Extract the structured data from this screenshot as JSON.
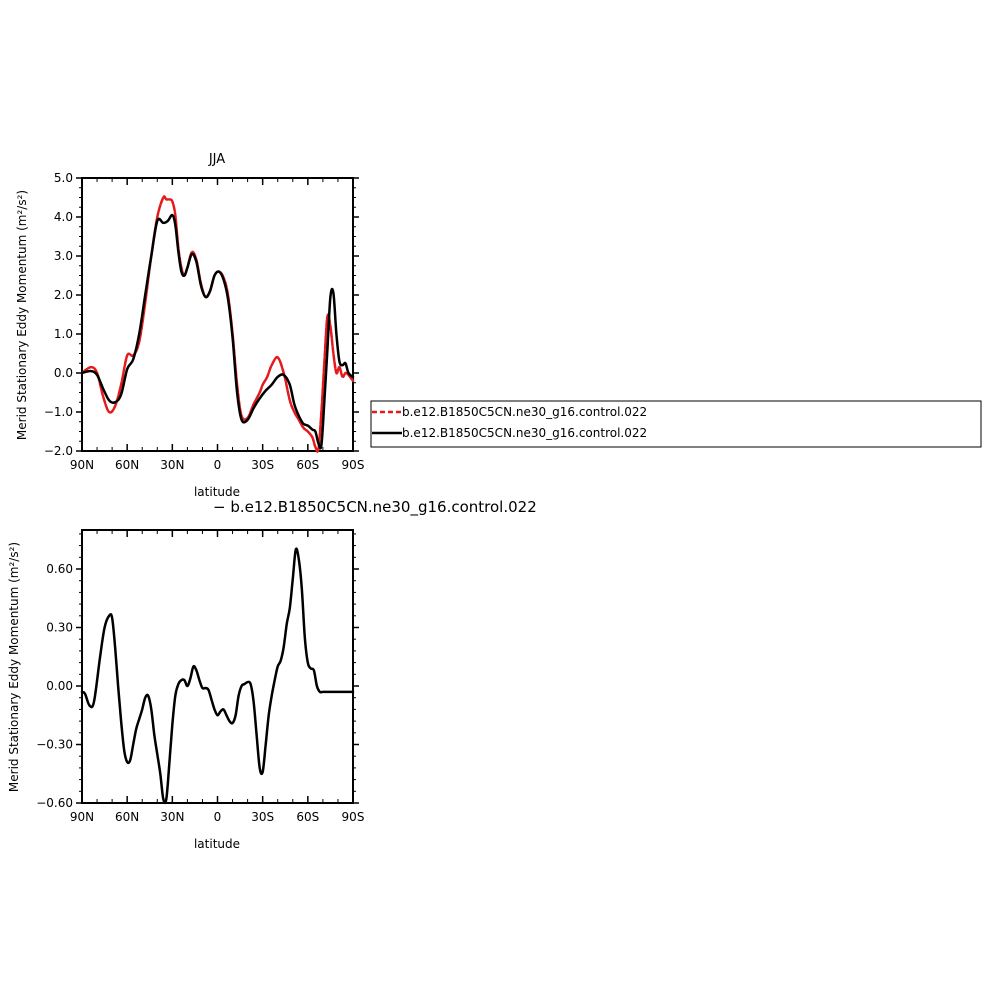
{
  "chart_data": [
    {
      "type": "line",
      "title": "JJA",
      "xlabel": "latitude",
      "ylabel": "Merid Stationary Eddy Momentum (m²/s²)",
      "xlim": [
        -90,
        90
      ],
      "ylim": [
        -2.0,
        5.0
      ],
      "xticks": [
        -90,
        -60,
        -30,
        0,
        30,
        60,
        90
      ],
      "xtick_labels": [
        "90N",
        "60N",
        "30N",
        "0",
        "30S",
        "60S",
        "90S"
      ],
      "yticks": [
        -2,
        -1,
        0,
        1,
        2,
        3,
        4,
        5
      ],
      "ytick_labels": [
        "−2.0",
        "−1.0",
        "0.0",
        "1.0",
        "2.0",
        "3.0",
        "4.0",
        "5.0"
      ],
      "grid": false,
      "legend": "right",
      "series": [
        {
          "name": "b.e12.B1850C5CN.ne30_g16.control.022",
          "color": "#e41a1c",
          "dash": "dashed",
          "x": [
            -90,
            -84,
            -80,
            -76,
            -72,
            -68,
            -64,
            -60,
            -56,
            -52,
            -48,
            -44,
            -40,
            -36,
            -34,
            -32,
            -30,
            -28,
            -26,
            -24,
            -22,
            -20,
            -17,
            -14,
            -11,
            -8,
            -5,
            -2,
            1,
            4,
            7,
            10,
            13,
            16,
            20,
            24,
            28,
            30,
            33,
            36,
            40,
            44,
            48,
            51,
            54,
            57,
            60,
            63,
            65,
            67,
            69,
            71,
            73,
            75,
            77,
            79,
            81,
            83,
            85,
            87,
            90
          ],
          "y": [
            0.0,
            0.15,
            0.0,
            -0.6,
            -1.0,
            -0.85,
            -0.3,
            0.45,
            0.45,
            0.8,
            1.8,
            3.0,
            4.0,
            4.5,
            4.45,
            4.45,
            4.4,
            4.05,
            3.2,
            2.7,
            2.5,
            2.7,
            3.1,
            2.9,
            2.3,
            1.95,
            2.1,
            2.5,
            2.6,
            2.45,
            2.0,
            1.0,
            -0.3,
            -1.1,
            -1.15,
            -0.8,
            -0.5,
            -0.3,
            -0.1,
            0.2,
            0.4,
            0.0,
            -0.7,
            -1.0,
            -1.2,
            -1.4,
            -1.5,
            -1.65,
            -1.9,
            -1.95,
            -1.0,
            0.3,
            1.45,
            1.2,
            0.5,
            0.0,
            0.15,
            -0.1,
            0.0,
            -0.05,
            -0.2
          ]
        },
        {
          "name": "b.e12.B1850C5CN.ne30_g16.control.022",
          "color": "#000000",
          "dash": "solid",
          "x": [
            -90,
            -84,
            -80,
            -76,
            -72,
            -68,
            -64,
            -60,
            -56,
            -52,
            -48,
            -44,
            -40,
            -36,
            -33,
            -30,
            -28,
            -26,
            -24,
            -22,
            -20,
            -17,
            -14,
            -11,
            -8,
            -5,
            -2,
            1,
            4,
            7,
            10,
            13,
            16,
            20,
            24,
            28,
            32,
            36,
            40,
            44,
            48,
            51,
            54,
            57,
            60,
            63,
            65,
            67,
            69,
            71,
            73,
            75,
            77,
            79,
            81,
            83,
            85,
            87,
            90
          ],
          "y": [
            0.0,
            0.05,
            -0.05,
            -0.4,
            -0.7,
            -0.75,
            -0.55,
            0.1,
            0.35,
            1.0,
            2.0,
            3.0,
            3.9,
            3.85,
            3.9,
            4.05,
            3.8,
            3.1,
            2.6,
            2.5,
            2.7,
            3.05,
            2.85,
            2.25,
            1.95,
            2.1,
            2.5,
            2.6,
            2.4,
            1.9,
            0.9,
            -0.5,
            -1.2,
            -1.2,
            -0.9,
            -0.65,
            -0.45,
            -0.3,
            -0.1,
            -0.05,
            -0.3,
            -0.8,
            -1.1,
            -1.3,
            -1.35,
            -1.45,
            -1.5,
            -1.8,
            -1.85,
            -0.7,
            0.6,
            1.95,
            2.05,
            1.0,
            0.3,
            0.2,
            0.25,
            0.0,
            -0.1
          ]
        }
      ]
    },
    {
      "type": "line",
      "title": "− b.e12.B1850C5CN.ne30_g16.control.022",
      "xlabel": "latitude",
      "ylabel": "Merid Stationary Eddy Momentum (m²/s²)",
      "xlim": [
        -90,
        90
      ],
      "ylim": [
        -0.6,
        0.8
      ],
      "xticks": [
        -90,
        -60,
        -30,
        0,
        30,
        60,
        90
      ],
      "xtick_labels": [
        "90N",
        "60N",
        "30N",
        "0",
        "30S",
        "60S",
        "90S"
      ],
      "yticks": [
        -0.6,
        -0.3,
        0.0,
        0.3,
        0.6
      ],
      "ytick_labels": [
        "−0.60",
        "−0.30",
        "0.00",
        "0.30",
        "0.60"
      ],
      "grid": false,
      "series": [
        {
          "color": "#000000",
          "dash": "solid",
          "x": [
            -90,
            -88,
            -85,
            -82,
            -78,
            -75,
            -72,
            -70,
            -68,
            -66,
            -64,
            -62,
            -60,
            -58,
            -56,
            -54,
            -52,
            -50,
            -48,
            -46,
            -44,
            -42,
            -40,
            -38,
            -36,
            -34,
            -32,
            -30,
            -28,
            -26,
            -24,
            -22,
            -20,
            -18,
            -16,
            -14,
            -12,
            -10,
            -8,
            -6,
            -4,
            -2,
            0,
            2,
            4,
            6,
            8,
            10,
            12,
            14,
            16,
            18,
            20,
            22,
            24,
            26,
            28,
            30,
            32,
            34,
            36,
            38,
            40,
            42,
            44,
            46,
            48,
            50,
            52,
            54,
            56,
            58,
            60,
            62,
            64,
            66,
            68,
            70,
            72,
            74,
            76,
            78,
            80,
            82,
            84,
            86,
            88,
            90
          ],
          "y": [
            -0.03,
            -0.04,
            -0.1,
            -0.08,
            0.15,
            0.3,
            0.36,
            0.35,
            0.2,
            0.0,
            -0.18,
            -0.33,
            -0.39,
            -0.38,
            -0.3,
            -0.22,
            -0.17,
            -0.12,
            -0.06,
            -0.05,
            -0.12,
            -0.25,
            -0.35,
            -0.45,
            -0.58,
            -0.58,
            -0.4,
            -0.2,
            -0.05,
            0.01,
            0.03,
            0.03,
            0.0,
            0.04,
            0.1,
            0.08,
            0.03,
            -0.01,
            -0.01,
            -0.02,
            -0.07,
            -0.12,
            -0.15,
            -0.13,
            -0.12,
            -0.15,
            -0.18,
            -0.19,
            -0.15,
            -0.05,
            0.0,
            0.01,
            0.02,
            0.01,
            -0.08,
            -0.25,
            -0.42,
            -0.44,
            -0.3,
            -0.15,
            -0.05,
            0.03,
            0.1,
            0.13,
            0.2,
            0.32,
            0.4,
            0.55,
            0.7,
            0.65,
            0.5,
            0.25,
            0.12,
            0.09,
            0.08,
            0.0,
            -0.03,
            -0.03,
            -0.03,
            -0.03,
            -0.03,
            -0.03,
            -0.03,
            -0.03,
            -0.03,
            -0.03,
            -0.03,
            -0.03
          ]
        }
      ]
    }
  ],
  "legend": {
    "items": [
      {
        "label": "b.e12.B1850C5CN.ne30_g16.control.022",
        "color": "#e41a1c",
        "dash": "dashed"
      },
      {
        "label": "b.e12.B1850C5CN.ne30_g16.control.022",
        "color": "#000000",
        "dash": "solid"
      }
    ]
  }
}
